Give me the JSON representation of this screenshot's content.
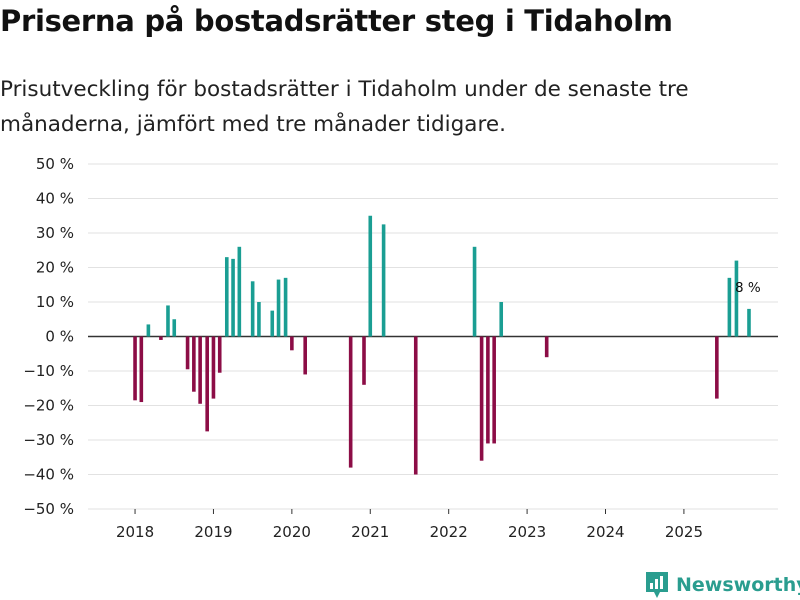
{
  "header": {
    "title": "Priserna på bostadsrätter steg i Tidaholm",
    "subtitle": "Prisutveckling för bostadsrätter i Tidaholm under de senaste tre månaderna, jämfört med tre månader tidigare."
  },
  "chart_data": {
    "type": "bar",
    "title": "Priserna på bostadsrätter steg i Tidaholm",
    "ylim": [
      -50,
      50
    ],
    "yticks": [
      50,
      40,
      30,
      20,
      10,
      0,
      -10,
      -20,
      -30,
      -40,
      -50
    ],
    "y_suffix": " %",
    "xlim": [
      2017.4,
      2026.2
    ],
    "xticks": [
      2018,
      2019,
      2020,
      2021,
      2022,
      2023,
      2024,
      2025
    ],
    "grid": true,
    "colors": {
      "positive": "#1a9e93",
      "negative": "#8c0d46"
    },
    "annotation": {
      "x": 2025.83,
      "value": 8,
      "label": "8 %"
    },
    "points": [
      {
        "x": 2018.0,
        "y": -18.5
      },
      {
        "x": 2018.08,
        "y": -19
      },
      {
        "x": 2018.17,
        "y": 3.5
      },
      {
        "x": 2018.33,
        "y": -1
      },
      {
        "x": 2018.42,
        "y": 9
      },
      {
        "x": 2018.5,
        "y": 5
      },
      {
        "x": 2018.67,
        "y": -9.5
      },
      {
        "x": 2018.75,
        "y": -16
      },
      {
        "x": 2018.83,
        "y": -19.5
      },
      {
        "x": 2018.92,
        "y": -27.5
      },
      {
        "x": 2019.0,
        "y": -18
      },
      {
        "x": 2019.08,
        "y": -10.5
      },
      {
        "x": 2019.17,
        "y": 23
      },
      {
        "x": 2019.25,
        "y": 22.5
      },
      {
        "x": 2019.33,
        "y": 26
      },
      {
        "x": 2019.5,
        "y": 16
      },
      {
        "x": 2019.58,
        "y": 10
      },
      {
        "x": 2019.75,
        "y": 7.5
      },
      {
        "x": 2019.83,
        "y": 16.5
      },
      {
        "x": 2019.92,
        "y": 17
      },
      {
        "x": 2020.0,
        "y": -4
      },
      {
        "x": 2020.17,
        "y": -11
      },
      {
        "x": 2020.75,
        "y": -38
      },
      {
        "x": 2020.92,
        "y": -14
      },
      {
        "x": 2021.0,
        "y": 35
      },
      {
        "x": 2021.17,
        "y": 32.5
      },
      {
        "x": 2021.58,
        "y": -40
      },
      {
        "x": 2022.33,
        "y": 26
      },
      {
        "x": 2022.42,
        "y": -36
      },
      {
        "x": 2022.5,
        "y": -31
      },
      {
        "x": 2022.58,
        "y": -31
      },
      {
        "x": 2022.67,
        "y": 10
      },
      {
        "x": 2023.25,
        "y": -6
      },
      {
        "x": 2025.42,
        "y": -18
      },
      {
        "x": 2025.58,
        "y": 17
      },
      {
        "x": 2025.67,
        "y": 22
      },
      {
        "x": 2025.83,
        "y": 8
      }
    ]
  },
  "brand": {
    "name": "Newsworthy",
    "icon": "newsworthy-logo-icon"
  }
}
